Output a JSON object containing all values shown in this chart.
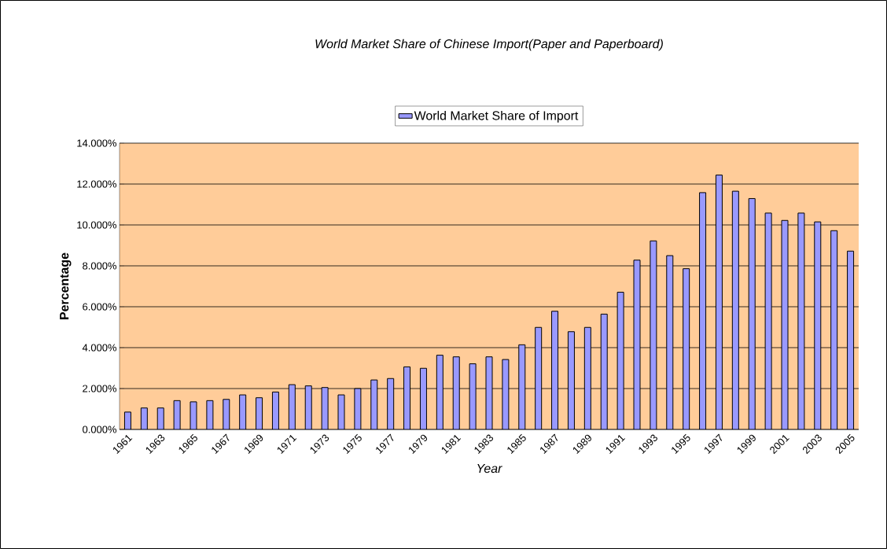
{
  "chart_data": {
    "type": "bar",
    "title": "World Market Share of Chinese Import(Paper and Paperboard)",
    "xlabel": "Year",
    "ylabel": "Percentage",
    "categories": [
      "1961",
      null,
      "1963",
      null,
      "1965",
      null,
      "1967",
      null,
      "1969",
      null,
      "1971",
      null,
      "1973",
      null,
      "1975",
      null,
      "1977",
      null,
      "1979",
      null,
      "1981",
      null,
      "1983",
      null,
      "1985",
      null,
      "1987",
      null,
      "1989",
      null,
      "1991",
      null,
      "1993",
      null,
      "1995",
      null,
      "1997",
      null,
      "1999",
      null,
      "2001",
      null,
      "2003",
      null,
      "2005"
    ],
    "series": [
      {
        "name": "World Market Share of Import",
        "color": "#9999ff",
        "values": [
          0.85,
          1.05,
          1.05,
          1.41,
          1.35,
          1.41,
          1.47,
          1.69,
          1.55,
          1.83,
          2.19,
          2.13,
          2.05,
          1.69,
          2.0,
          2.42,
          2.49,
          3.06,
          2.99,
          3.63,
          3.55,
          3.21,
          3.55,
          3.42,
          4.14,
          4.99,
          5.78,
          4.78,
          4.99,
          5.64,
          6.71,
          8.28,
          9.22,
          8.5,
          7.86,
          11.58,
          12.44,
          11.65,
          11.29,
          10.58,
          10.22,
          10.58,
          10.15,
          9.72,
          8.72
        ]
      }
    ],
    "ylim": [
      0,
      14
    ],
    "yticks": [
      {
        "value": 0,
        "label": "0.000%"
      },
      {
        "value": 2,
        "label": "2.000%"
      },
      {
        "value": 4,
        "label": "4.000%"
      },
      {
        "value": 6,
        "label": "6.000%"
      },
      {
        "value": 8,
        "label": "8.000%"
      },
      {
        "value": 10,
        "label": "10.000%"
      },
      {
        "value": 12,
        "label": "12.000%"
      },
      {
        "value": 14,
        "label": "14.000%"
      }
    ],
    "grid": "y",
    "legend": "top"
  }
}
